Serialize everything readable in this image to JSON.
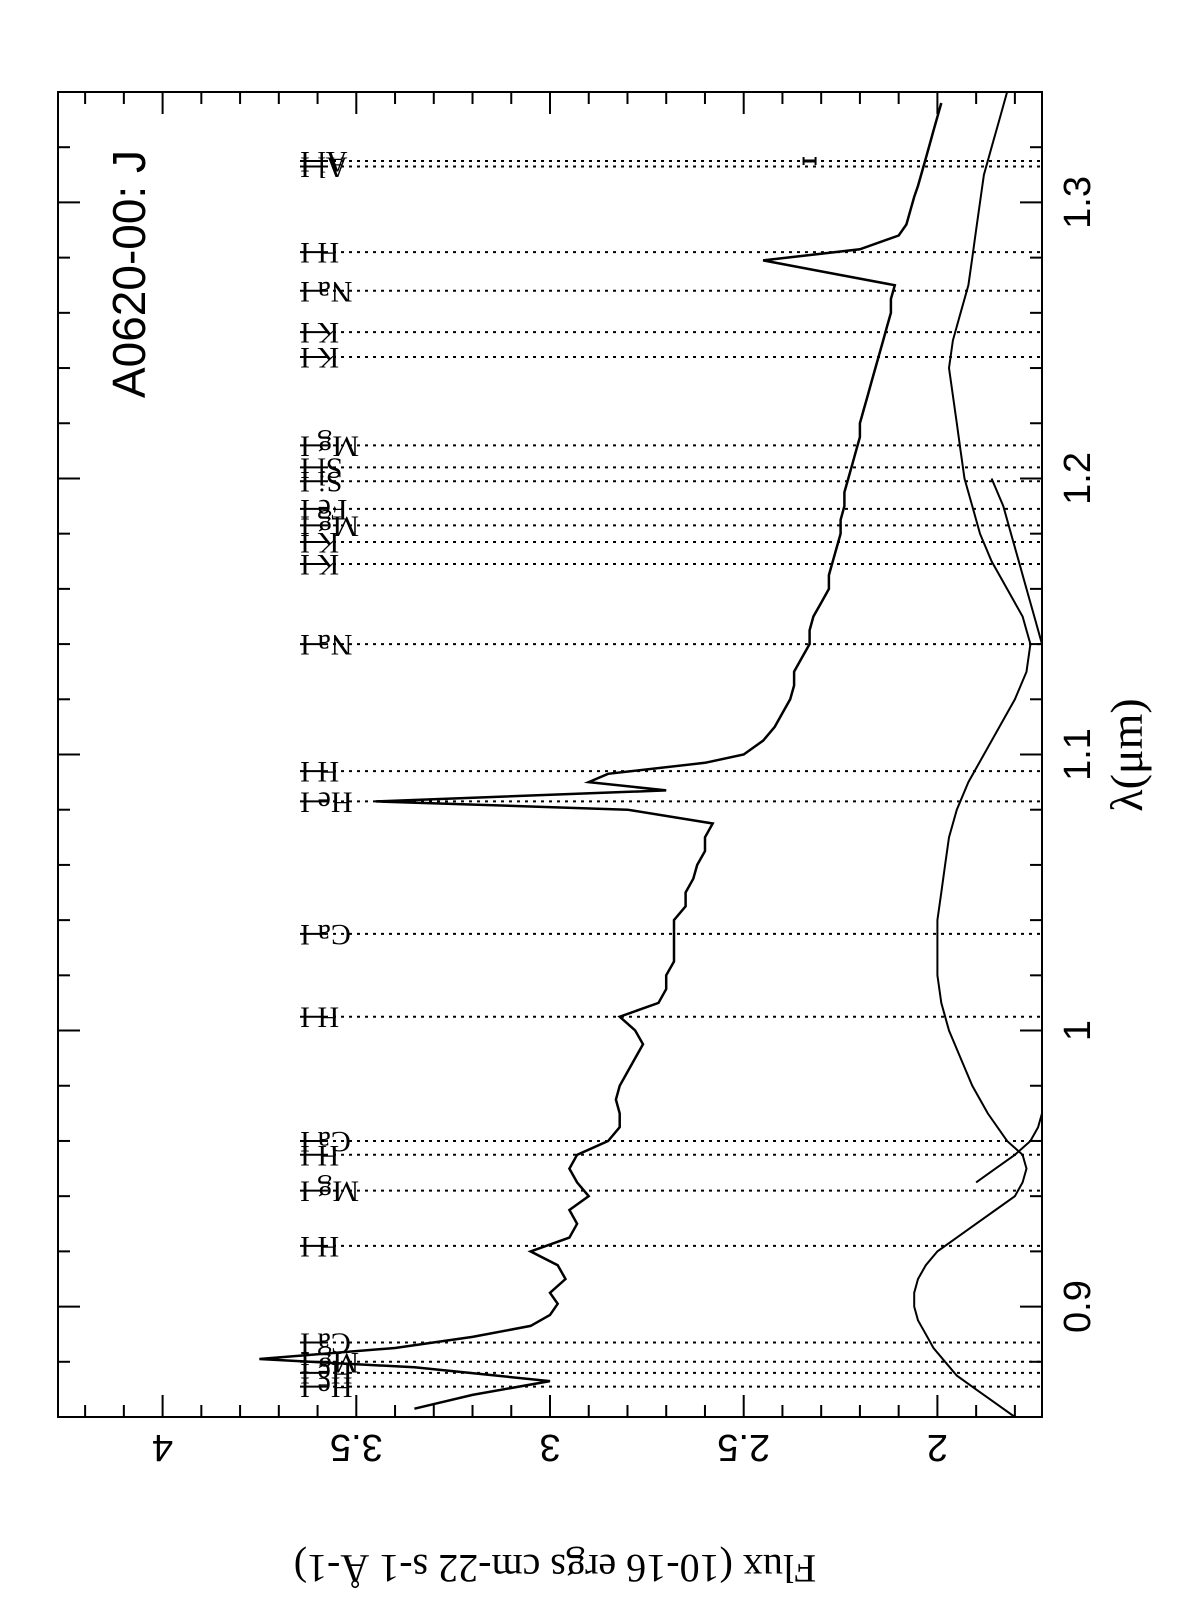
{
  "chart_data": {
    "type": "line",
    "orientation": "rotated 90 degrees clockwise (wavelength runs top to bottom)",
    "title": "A0620-00:  J",
    "xlabel": "λ(μm)",
    "ylabel": "Flux (10-16 ergs cm-22 s-1 Å-1)",
    "xlim": [
      0.86,
      1.34
    ],
    "ylim": [
      1.73,
      4.27
    ],
    "x_ticks": [
      {
        "value": 0.9,
        "label": "0.9"
      },
      {
        "value": 1.0,
        "label": "1"
      },
      {
        "value": 1.1,
        "label": "1.1"
      },
      {
        "value": 1.2,
        "label": "1.2"
      },
      {
        "value": 1.3,
        "label": "1.3"
      }
    ],
    "y_ticks": [
      {
        "value": 2.0,
        "label": "2"
      },
      {
        "value": 2.5,
        "label": "2.5"
      },
      {
        "value": 3.0,
        "label": "3"
      },
      {
        "value": 3.5,
        "label": "3.5"
      },
      {
        "value": 4.0,
        "label": "4"
      }
    ],
    "error_bar": {
      "x": 1.315,
      "y": 2.33
    },
    "series": [
      {
        "points": [
          [
            0.863,
            3.35
          ],
          [
            0.868,
            3.2
          ],
          [
            0.873,
            3.0
          ],
          [
            0.878,
            3.35
          ],
          [
            0.881,
            3.75
          ],
          [
            0.885,
            3.4
          ],
          [
            0.889,
            3.2
          ],
          [
            0.893,
            3.05
          ],
          [
            0.897,
            3.0
          ],
          [
            0.901,
            2.98
          ],
          [
            0.905,
            3.0
          ],
          [
            0.91,
            2.96
          ],
          [
            0.915,
            2.98
          ],
          [
            0.92,
            3.05
          ],
          [
            0.925,
            2.95
          ],
          [
            0.93,
            2.93
          ],
          [
            0.935,
            2.95
          ],
          [
            0.94,
            2.9
          ],
          [
            0.945,
            2.93
          ],
          [
            0.95,
            2.95
          ],
          [
            0.955,
            2.93
          ],
          [
            0.96,
            2.85
          ],
          [
            0.965,
            2.82
          ],
          [
            0.97,
            2.82
          ],
          [
            0.975,
            2.83
          ],
          [
            0.98,
            2.82
          ],
          [
            0.985,
            2.8
          ],
          [
            0.99,
            2.78
          ],
          [
            0.995,
            2.76
          ],
          [
            1.0,
            2.78
          ],
          [
            1.005,
            2.82
          ],
          [
            1.01,
            2.72
          ],
          [
            1.015,
            2.7
          ],
          [
            1.02,
            2.7
          ],
          [
            1.025,
            2.68
          ],
          [
            1.03,
            2.68
          ],
          [
            1.035,
            2.68
          ],
          [
            1.04,
            2.68
          ],
          [
            1.045,
            2.65
          ],
          [
            1.05,
            2.65
          ],
          [
            1.055,
            2.63
          ],
          [
            1.06,
            2.62
          ],
          [
            1.065,
            2.6
          ],
          [
            1.07,
            2.6
          ],
          [
            1.075,
            2.58
          ],
          [
            1.08,
            2.8
          ],
          [
            1.083,
            3.45
          ],
          [
            1.087,
            2.7
          ],
          [
            1.09,
            2.9
          ],
          [
            1.093,
            2.85
          ],
          [
            1.097,
            2.6
          ],
          [
            1.1,
            2.5
          ],
          [
            1.105,
            2.45
          ],
          [
            1.11,
            2.42
          ],
          [
            1.115,
            2.4
          ],
          [
            1.12,
            2.38
          ],
          [
            1.125,
            2.37
          ],
          [
            1.13,
            2.37
          ],
          [
            1.135,
            2.35
          ],
          [
            1.14,
            2.33
          ],
          [
            1.145,
            2.33
          ],
          [
            1.15,
            2.32
          ],
          [
            1.155,
            2.3
          ],
          [
            1.16,
            2.28
          ],
          [
            1.165,
            2.28
          ],
          [
            1.17,
            2.27
          ],
          [
            1.175,
            2.26
          ],
          [
            1.18,
            2.25
          ],
          [
            1.185,
            2.25
          ],
          [
            1.19,
            2.24
          ],
          [
            1.195,
            2.24
          ],
          [
            1.2,
            2.23
          ],
          [
            1.205,
            2.22
          ],
          [
            1.21,
            2.21
          ],
          [
            1.215,
            2.2
          ],
          [
            1.22,
            2.2
          ],
          [
            1.225,
            2.19
          ],
          [
            1.23,
            2.18
          ],
          [
            1.235,
            2.17
          ],
          [
            1.24,
            2.16
          ],
          [
            1.245,
            2.15
          ],
          [
            1.25,
            2.14
          ],
          [
            1.255,
            2.13
          ],
          [
            1.26,
            2.12
          ],
          [
            1.265,
            2.12
          ],
          [
            1.27,
            2.11
          ],
          [
            1.275,
            2.3
          ],
          [
            1.279,
            2.45
          ],
          [
            1.283,
            2.2
          ],
          [
            1.288,
            2.1
          ],
          [
            1.292,
            2.08
          ],
          [
            1.297,
            2.07
          ],
          [
            1.302,
            2.06
          ],
          [
            1.306,
            2.05
          ],
          [
            1.311,
            2.04
          ],
          [
            1.316,
            2.03
          ],
          [
            1.321,
            2.02
          ],
          [
            1.326,
            2.01
          ],
          [
            1.331,
            2.0
          ],
          [
            1.336,
            1.99
          ]
        ]
      },
      {
        "points": [
          [
            0.86,
            1.8
          ],
          [
            0.865,
            1.85
          ],
          [
            0.87,
            1.9
          ],
          [
            0.875,
            1.95
          ],
          [
            0.88,
            1.98
          ],
          [
            0.885,
            2.01
          ],
          [
            0.89,
            2.03
          ],
          [
            0.895,
            2.05
          ],
          [
            0.9,
            2.06
          ],
          [
            0.905,
            2.06
          ],
          [
            0.91,
            2.05
          ],
          [
            0.915,
            2.03
          ],
          [
            0.92,
            2.0
          ],
          [
            0.925,
            1.95
          ],
          [
            0.93,
            1.9
          ],
          [
            0.935,
            1.85
          ],
          [
            0.94,
            1.8
          ],
          [
            0.945,
            1.78
          ],
          [
            0.95,
            1.77
          ],
          [
            0.955,
            1.78
          ],
          [
            0.96,
            1.82
          ],
          [
            0.97,
            1.87
          ],
          [
            0.98,
            1.91
          ],
          [
            0.99,
            1.94
          ],
          [
            1.0,
            1.97
          ],
          [
            1.01,
            1.99
          ],
          [
            1.02,
            2.0
          ],
          [
            1.03,
            2.0
          ],
          [
            1.04,
            2.0
          ],
          [
            1.05,
            1.99
          ],
          [
            1.06,
            1.98
          ],
          [
            1.07,
            1.97
          ],
          [
            1.08,
            1.95
          ],
          [
            1.09,
            1.92
          ],
          [
            1.1,
            1.88
          ],
          [
            1.11,
            1.84
          ],
          [
            1.12,
            1.8
          ],
          [
            1.13,
            1.77
          ],
          [
            1.14,
            1.76
          ],
          [
            1.15,
            1.78
          ],
          [
            1.16,
            1.82
          ],
          [
            1.17,
            1.86
          ],
          [
            1.18,
            1.89
          ],
          [
            1.19,
            1.91
          ],
          [
            1.2,
            1.93
          ],
          [
            1.21,
            1.94
          ],
          [
            1.22,
            1.95
          ],
          [
            1.23,
            1.96
          ],
          [
            1.24,
            1.97
          ],
          [
            1.25,
            1.96
          ],
          [
            1.26,
            1.94
          ],
          [
            1.27,
            1.92
          ],
          [
            1.28,
            1.91
          ],
          [
            1.29,
            1.9
          ],
          [
            1.3,
            1.89
          ],
          [
            1.31,
            1.88
          ],
          [
            1.32,
            1.86
          ],
          [
            1.33,
            1.84
          ],
          [
            1.34,
            1.82
          ]
        ]
      },
      {
        "points": [
          [
            0.945,
            1.9
          ],
          [
            0.95,
            1.85
          ],
          [
            0.955,
            1.8
          ],
          [
            0.96,
            1.76
          ],
          [
            0.965,
            1.74
          ],
          [
            0.97,
            1.73
          ]
        ]
      },
      {
        "points": [
          [
            1.14,
            1.73
          ],
          [
            1.15,
            1.75
          ],
          [
            1.16,
            1.77
          ],
          [
            1.17,
            1.79
          ],
          [
            1.18,
            1.81
          ],
          [
            1.19,
            1.83
          ],
          [
            1.2,
            1.86
          ]
        ]
      }
    ],
    "line_ids": [
      {
        "x": 0.871,
        "label": "He I"
      },
      {
        "x": 0.876,
        "label": "He I"
      },
      {
        "x": 0.88,
        "label": "Mg I"
      },
      {
        "x": 0.887,
        "label": "Ca I"
      },
      {
        "x": 0.922,
        "label": "H I"
      },
      {
        "x": 0.942,
        "label": "Mg I"
      },
      {
        "x": 0.955,
        "label": "H I"
      },
      {
        "x": 0.96,
        "label": "Ca I"
      },
      {
        "x": 1.005,
        "label": "H I"
      },
      {
        "x": 1.035,
        "label": "Ca I"
      },
      {
        "x": 1.083,
        "label": "He I"
      },
      {
        "x": 1.094,
        "label": "H I"
      },
      {
        "x": 1.14,
        "label": "Na I"
      },
      {
        "x": 1.169,
        "label": "K I"
      },
      {
        "x": 1.177,
        "label": "K I"
      },
      {
        "x": 1.183,
        "label": "Mg I"
      },
      {
        "x": 1.189,
        "label": "Fe I"
      },
      {
        "x": 1.199,
        "label": "Si I"
      },
      {
        "x": 1.204,
        "label": "Si I"
      },
      {
        "x": 1.212,
        "label": "Mg I"
      },
      {
        "x": 1.244,
        "label": "K I"
      },
      {
        "x": 1.253,
        "label": "K I"
      },
      {
        "x": 1.268,
        "label": "Na I"
      },
      {
        "x": 1.282,
        "label": "H I"
      },
      {
        "x": 1.313,
        "label": "Al I"
      },
      {
        "x": 1.315,
        "label": "Al I"
      }
    ]
  }
}
